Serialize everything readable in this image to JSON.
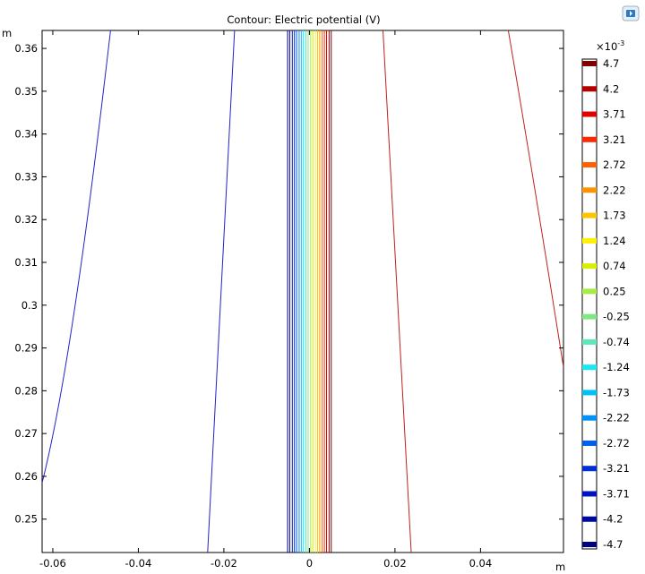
{
  "chart_data": {
    "type": "contour",
    "title": "Contour: Electric potential (V)",
    "xlabel": "m",
    "ylabel": "m",
    "xlim": [
      -0.0625,
      0.0594
    ],
    "ylim": [
      0.2422,
      0.3642
    ],
    "x_ticks": [
      -0.06,
      -0.04,
      -0.02,
      0,
      0.02,
      0.04
    ],
    "x_tick_labels": [
      "-0.06",
      "-0.04",
      "-0.02",
      "0",
      "0.02",
      "0.04"
    ],
    "y_ticks": [
      0.25,
      0.26,
      0.27,
      0.28,
      0.29,
      0.3,
      0.31,
      0.32,
      0.33,
      0.34,
      0.35,
      0.36
    ],
    "y_tick_labels": [
      "0.25",
      "0.26",
      "0.27",
      "0.28",
      "0.29",
      "0.3",
      "0.31",
      "0.32",
      "0.33",
      "0.34",
      "0.35",
      "0.36"
    ],
    "grid": false,
    "colorbar": {
      "exponent_label": "×10",
      "exponent_power": "-3",
      "placement": "right",
      "levels": [
        {
          "label": "4.7",
          "color": "#800000"
        },
        {
          "label": "4.2",
          "color": "#b00000"
        },
        {
          "label": "3.71",
          "color": "#e00000"
        },
        {
          "label": "3.21",
          "color": "#ff2800"
        },
        {
          "label": "2.72",
          "color": "#ff6000"
        },
        {
          "label": "2.22",
          "color": "#ff9400"
        },
        {
          "label": "1.73",
          "color": "#ffc400"
        },
        {
          "label": "1.24",
          "color": "#fff200"
        },
        {
          "label": "0.74",
          "color": "#d8f000"
        },
        {
          "label": "0.25",
          "color": "#a8ec4a"
        },
        {
          "label": "-0.25",
          "color": "#80e880"
        },
        {
          "label": "-0.74",
          "color": "#5ee8b8"
        },
        {
          "label": "-1.24",
          "color": "#18e8f0"
        },
        {
          "label": "-1.73",
          "color": "#00c0f8"
        },
        {
          "label": "-2.22",
          "color": "#0090f8"
        },
        {
          "label": "-2.72",
          "color": "#0060ea"
        },
        {
          "label": "-3.21",
          "color": "#0030d0"
        },
        {
          "label": "-3.71",
          "color": "#0014c0"
        },
        {
          "label": "-4.2",
          "color": "#0008a0"
        },
        {
          "label": "-4.7",
          "color": "#000080"
        }
      ]
    },
    "central_band_x": [
      -0.0051,
      -0.0046,
      -0.004,
      -0.0035,
      -0.003,
      -0.0024,
      -0.0019,
      -0.0014,
      -0.0008,
      -0.0003,
      0.0003,
      0.0008,
      0.0014,
      0.0019,
      0.0024,
      0.003,
      0.0035,
      0.004,
      0.0046,
      0.0051
    ],
    "outer_contours": [
      {
        "level": "-4.7",
        "color": "#2222cc",
        "points": [
          [
            -0.0625,
            0.2585
          ],
          [
            -0.056,
            0.284
          ],
          [
            -0.05,
            0.334
          ],
          [
            -0.0465,
            0.3642
          ]
        ]
      },
      {
        "level": "-4.7",
        "color": "#2222cc",
        "points": [
          [
            -0.0238,
            0.2422
          ],
          [
            -0.0205,
            0.303
          ],
          [
            -0.0175,
            0.3642
          ]
        ]
      },
      {
        "level": "4.7",
        "color": "#c02020",
        "points": [
          [
            0.0172,
            0.3642
          ],
          [
            0.0205,
            0.303
          ],
          [
            0.0238,
            0.2422
          ]
        ]
      },
      {
        "level": "4.7",
        "color": "#c02020",
        "points": [
          [
            0.0465,
            0.3642
          ],
          [
            0.053,
            0.326
          ],
          [
            0.0594,
            0.2855
          ]
        ]
      }
    ]
  }
}
